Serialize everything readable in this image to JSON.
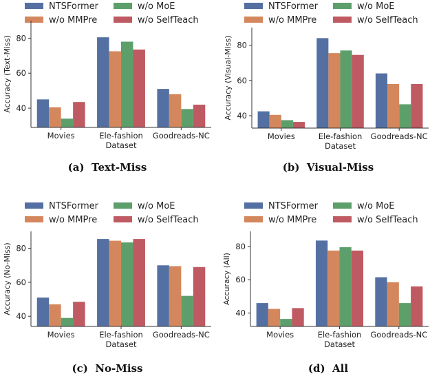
{
  "colors": {
    "series": [
      "#5470a3",
      "#d4875c",
      "#5d9f6b",
      "#bf5a62"
    ],
    "axis": "#333333"
  },
  "chart_data": [
    {
      "type": "bar",
      "caption": "(a)  Text-Miss",
      "categories": [
        "Movies",
        "Ele-fashion",
        "Goodreads-NC"
      ],
      "xlabel": "Dataset",
      "ylabel": "Accuracy (Text-Miss)",
      "ylim": [
        29,
        90
      ],
      "yticks": [
        40,
        60,
        80
      ],
      "grid": false,
      "legend": "top",
      "series": [
        {
          "name": "NTSFormer",
          "values": [
            45.0,
            80.5,
            51.0
          ]
        },
        {
          "name": "w/o MMPre",
          "values": [
            40.5,
            72.5,
            48.0
          ]
        },
        {
          "name": "w/o MoE",
          "values": [
            34.0,
            78.0,
            39.5
          ]
        },
        {
          "name": "w/o SelfTeach",
          "values": [
            43.5,
            73.5,
            42.0
          ]
        }
      ]
    },
    {
      "type": "bar",
      "caption": "(b)  Visual-Miss",
      "categories": [
        "Movies",
        "Ele-fashion",
        "Goodreads-NC"
      ],
      "xlabel": "Dataset",
      "ylabel": "Accuracy (Visual-Miss)",
      "ylim": [
        33,
        90
      ],
      "yticks": [
        40,
        60,
        80
      ],
      "grid": false,
      "legend": "top",
      "series": [
        {
          "name": "NTSFormer",
          "values": [
            42.5,
            84.0,
            64.0
          ]
        },
        {
          "name": "w/o MMPre",
          "values": [
            40.5,
            75.5,
            58.0
          ]
        },
        {
          "name": "w/o MoE",
          "values": [
            37.5,
            77.0,
            46.5
          ]
        },
        {
          "name": "w/o SelfTeach",
          "values": [
            36.5,
            74.5,
            58.0
          ]
        }
      ]
    },
    {
      "type": "bar",
      "caption": "(c)  No-Miss",
      "categories": [
        "Movies",
        "Ele-fashion",
        "Goodreads-NC"
      ],
      "xlabel": "Dataset",
      "ylabel": "Accuracy (No-Miss)",
      "ylim": [
        34,
        90
      ],
      "yticks": [
        40,
        60,
        80
      ],
      "grid": false,
      "legend": "top",
      "series": [
        {
          "name": "NTSFormer",
          "values": [
            51.0,
            85.5,
            70.0
          ]
        },
        {
          "name": "w/o MMPre",
          "values": [
            47.0,
            84.5,
            69.5
          ]
        },
        {
          "name": "w/o MoE",
          "values": [
            39.0,
            83.5,
            52.0
          ]
        },
        {
          "name": "w/o SelfTeach",
          "values": [
            48.5,
            85.5,
            69.0
          ]
        }
      ]
    },
    {
      "type": "bar",
      "caption": "(d)  All",
      "categories": [
        "Movies",
        "Ele-fashion",
        "Goodreads-NC"
      ],
      "xlabel": "Dataset",
      "ylabel": "Accuracy (All)",
      "ylim": [
        32,
        89
      ],
      "yticks": [
        40,
        60,
        80
      ],
      "grid": false,
      "legend": "top",
      "series": [
        {
          "name": "NTSFormer",
          "values": [
            46.0,
            83.5,
            61.5
          ]
        },
        {
          "name": "w/o MMPre",
          "values": [
            42.5,
            77.5,
            58.5
          ]
        },
        {
          "name": "w/o MoE",
          "values": [
            36.5,
            79.5,
            46.0
          ]
        },
        {
          "name": "w/o SelfTeach",
          "values": [
            43.0,
            77.5,
            56.0
          ]
        }
      ]
    }
  ]
}
